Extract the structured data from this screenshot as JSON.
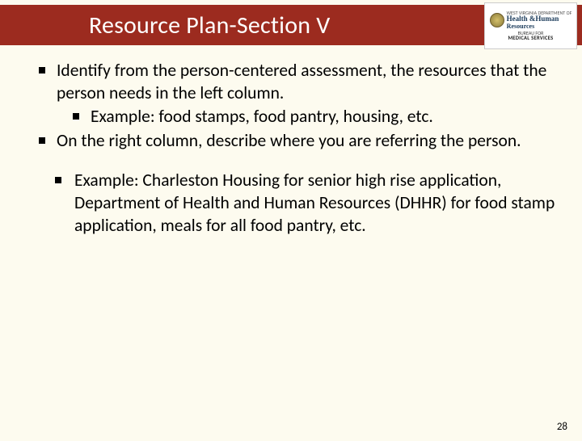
{
  "header": {
    "title": "Resource Plan-Section V",
    "title_color": "#ffffff",
    "bar_color": "#9c2b1f",
    "logo": {
      "line1": "WEST VIRGINIA DEPARTMENT OF",
      "line2": "Health",
      "amp": "&Human",
      "line3": "Resources",
      "sub1": "BUREAU FOR",
      "sub2": "MEDICAL SERVICES"
    }
  },
  "body": {
    "bullets_lvl1": [
      {
        "text": "Identify from the person-centered assessment, the resources that the person needs in the left column.",
        "sub": [
          "Example: food stamps, food pantry, housing, etc."
        ]
      },
      {
        "text": "On the right column, describe where you are referring the person.",
        "sub": []
      }
    ],
    "bullets_block2": [
      "Example: Charleston Housing for senior high rise application, Department of Health and Human Resources (DHHR) for food stamp application, meals for all food pantry, etc."
    ]
  },
  "page_number": "28",
  "colors": {
    "background": "#fdfbef",
    "text": "#000000"
  },
  "fontsize": {
    "title": 30,
    "body": 21.5,
    "pagenum": 13
  }
}
